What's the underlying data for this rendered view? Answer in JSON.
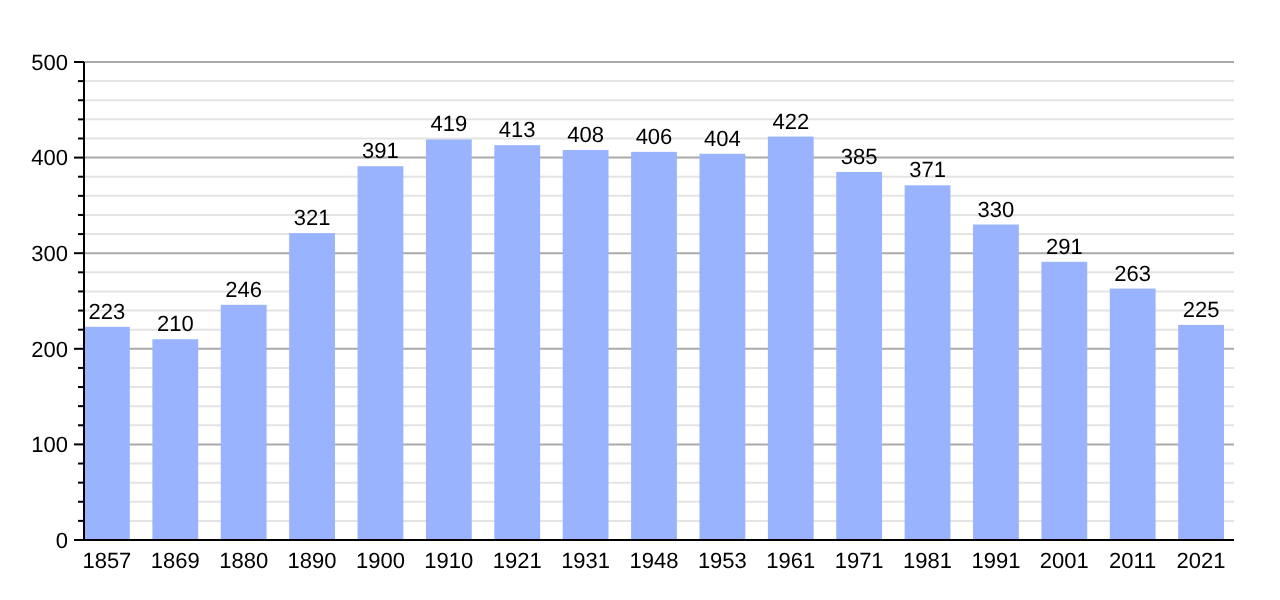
{
  "chart_data": {
    "type": "bar",
    "categories": [
      "1857",
      "1869",
      "1880",
      "1890",
      "1900",
      "1910",
      "1921",
      "1931",
      "1948",
      "1953",
      "1961",
      "1971",
      "1981",
      "1991",
      "2001",
      "2011",
      "2021"
    ],
    "values": [
      223,
      210,
      246,
      321,
      391,
      419,
      413,
      408,
      406,
      404,
      422,
      385,
      371,
      330,
      291,
      263,
      225
    ],
    "color": "#99b3ff",
    "ylim": [
      0,
      500
    ],
    "yticks": [
      0,
      {
        "value": 20,
        "label": null
      },
      {
        "value": 40,
        "label": null
      },
      {
        "value": 60,
        "label": null
      },
      {
        "value": 80,
        "label": null
      },
      100,
      {
        "value": 120,
        "label": null
      },
      {
        "value": 140,
        "label": null
      },
      {
        "value": 160,
        "label": null
      },
      {
        "value": 180,
        "label": null
      },
      200,
      {
        "value": 220,
        "label": null
      },
      {
        "value": 240,
        "label": null
      },
      {
        "value": 260,
        "label": null
      },
      {
        "value": 280,
        "label": null
      },
      300,
      {
        "value": 320,
        "label": null
      },
      {
        "value": 340,
        "label": null
      },
      {
        "value": 360,
        "label": null
      },
      {
        "value": 380,
        "label": null
      },
      400,
      {
        "value": 420,
        "label": null
      },
      {
        "value": 440,
        "label": null
      },
      {
        "value": 460,
        "label": null
      },
      {
        "value": 480,
        "label": null
      },
      500
    ],
    "grid": true,
    "data_labels": true
  }
}
